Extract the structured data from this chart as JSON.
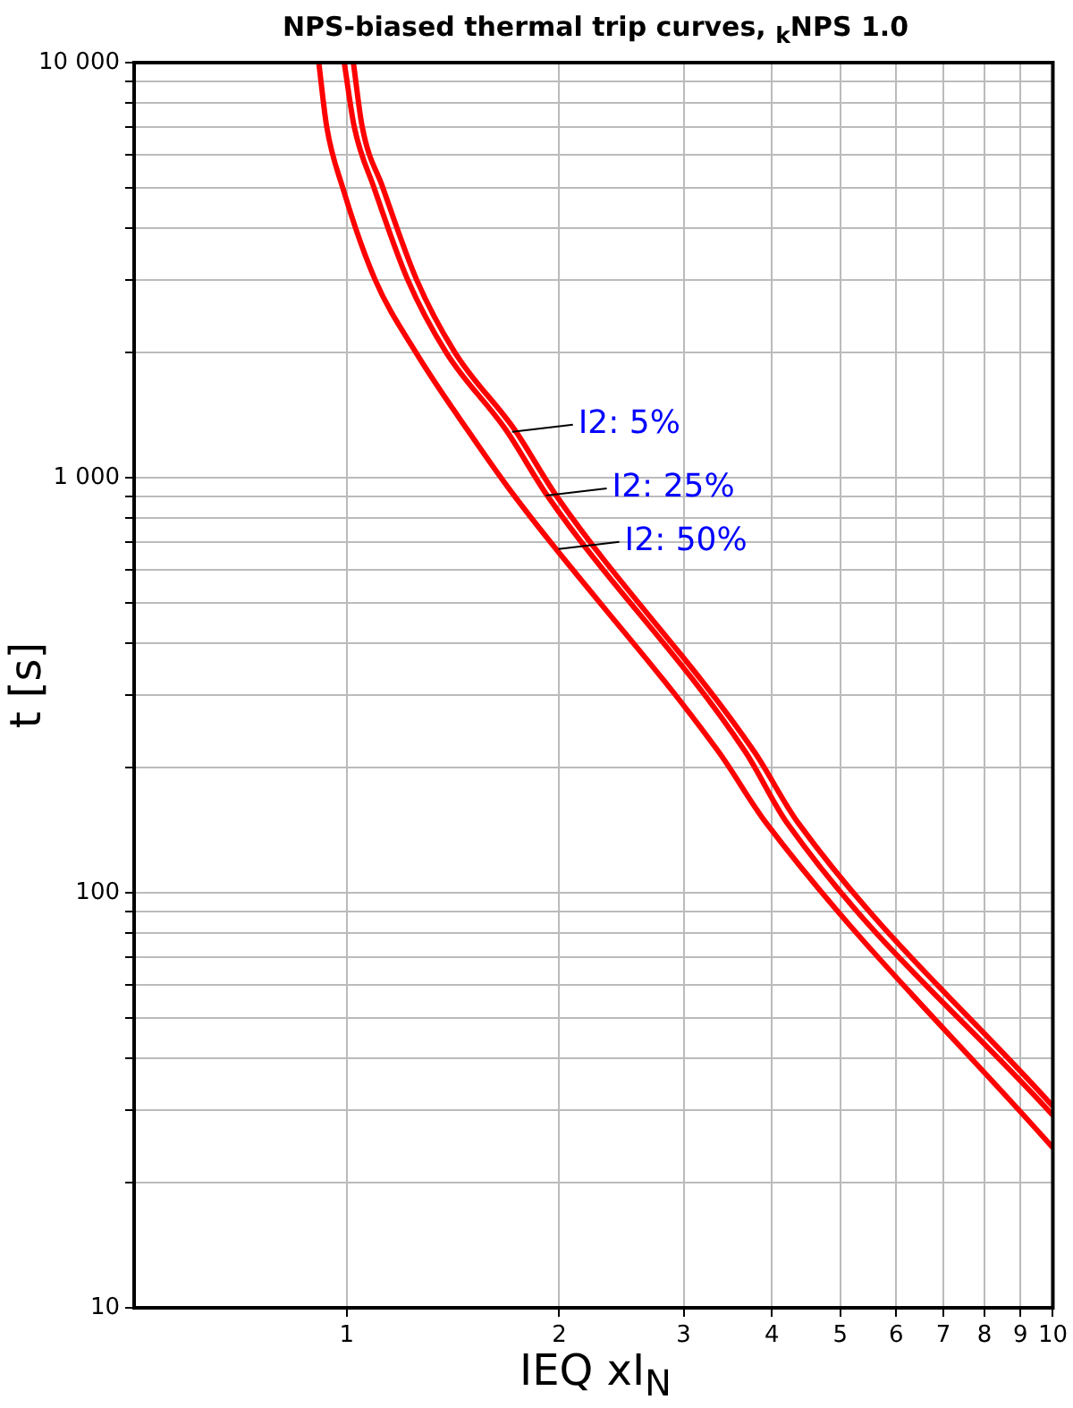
{
  "chart_data": {
    "type": "line",
    "title": "NPS-biased thermal trip curves, $_{k}$NPS 1.0",
    "xlabel": "IEQ xI$_{N}$",
    "ylabel": "t [s]",
    "log": "xy",
    "grid": true,
    "legend": false,
    "xlim": [
      0.5,
      10
    ],
    "xticks": [
      1,
      2,
      3,
      4,
      5,
      6,
      7,
      8,
      9,
      10
    ],
    "ylim": [
      10,
      10000
    ],
    "yticks": [
      {
        "value": 10,
        "label": "10"
      },
      {
        "value": 20,
        "label": null
      },
      {
        "value": 30,
        "label": null
      },
      {
        "value": 40,
        "label": null
      },
      {
        "value": 50,
        "label": null
      },
      {
        "value": 60,
        "label": null
      },
      {
        "value": 70,
        "label": null
      },
      {
        "value": 80,
        "label": null
      },
      {
        "value": 90,
        "label": null
      },
      {
        "value": 100,
        "label": "100"
      },
      {
        "value": 200,
        "label": null
      },
      {
        "value": 300,
        "label": null
      },
      {
        "value": 400,
        "label": null
      },
      {
        "value": 500,
        "label": null
      },
      {
        "value": 600,
        "label": null
      },
      {
        "value": 700,
        "label": null
      },
      {
        "value": 800,
        "label": null
      },
      {
        "value": 900,
        "label": null
      },
      {
        "value": 1000,
        "label": "1 000"
      },
      {
        "value": 2000,
        "label": null
      },
      {
        "value": 3000,
        "label": null
      },
      {
        "value": 4000,
        "label": null
      },
      {
        "value": 5000,
        "label": null
      },
      {
        "value": 6000,
        "label": null
      },
      {
        "value": 7000,
        "label": null
      },
      {
        "value": 8000,
        "label": null
      },
      {
        "value": 9000,
        "label": null
      },
      {
        "value": 10000,
        "label": "10 000"
      }
    ],
    "series": [
      {
        "color": "#ff0000",
        "x": [
          1.022,
          1.052,
          1.125,
          1.256,
          1.424,
          1.728,
          1.979,
          3.775,
          4.363,
          10
        ],
        "values": [
          10000,
          7000,
          5000,
          3000,
          2000,
          1307,
          907,
          219,
          147,
          30.6
        ]
      },
      {
        "color": "#ff0000",
        "x": [
          0.992,
          1.025,
          1.093,
          1.22,
          1.384,
          1.679,
          1.922,
          3.666,
          4.206,
          10
        ],
        "values": [
          10000,
          7000,
          5000,
          3000,
          2000,
          1307,
          907,
          219,
          147,
          29.1
        ]
      },
      {
        "color": "#ff0000",
        "x": [
          0.913,
          0.937,
          0.987,
          1.097,
          1.254,
          1.481,
          1.725,
          3.36,
          3.93,
          10
        ],
        "values": [
          10000,
          7000,
          5000,
          3000,
          2000,
          1307,
          907,
          219,
          147,
          24.3
        ]
      }
    ],
    "annotations": [
      {
        "text": "I2: 5%",
        "x": 1.715,
        "y": 1290
      },
      {
        "text": "I2: 25%",
        "x": 1.915,
        "y": 906
      },
      {
        "text": "I2: 50%",
        "x": 1.995,
        "y": 673
      }
    ]
  }
}
